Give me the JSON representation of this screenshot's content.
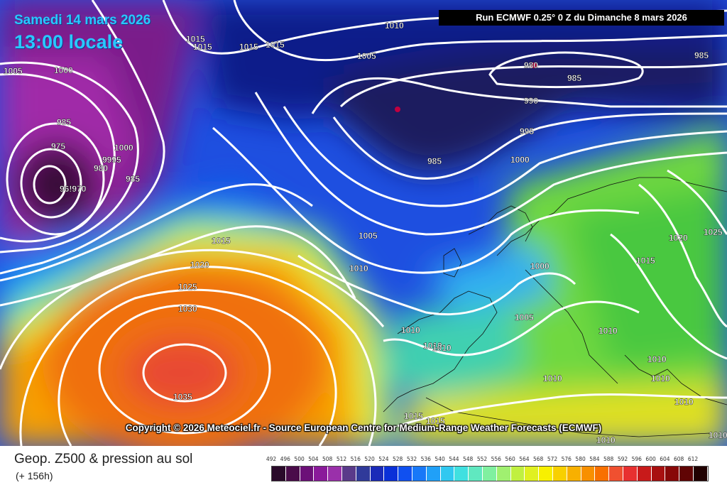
{
  "header": {
    "date": "Samedi 14 mars 2026",
    "time": "13:00 locale",
    "run": "Run ECMWF 0.25° 0 Z du Dimanche 8 mars 2026"
  },
  "copyright": "Copyright © 2026 Meteociel.fr - Source European Centre for Medium-Range Weather Forecasts (ECMWF)",
  "footer": {
    "caption": "Geop. Z500 & pression au sol",
    "hours": "(+ 156h)"
  },
  "scale": {
    "labels": [
      "492",
      "496",
      "500",
      "504",
      "508",
      "512",
      "516",
      "520",
      "524",
      "528",
      "532",
      "536",
      "540",
      "544",
      "548",
      "552",
      "556",
      "560",
      "564",
      "568",
      "572",
      "576",
      "580",
      "584",
      "588",
      "592",
      "596",
      "600",
      "604",
      "608",
      "612"
    ],
    "colors": [
      "#2a0a2a",
      "#4a0c4a",
      "#6c1078",
      "#8a1a9a",
      "#9a30aa",
      "#5a3a8a",
      "#303a9a",
      "#1a2ab8",
      "#0a30d8",
      "#1050f0",
      "#1878f8",
      "#20a0f8",
      "#30c8f0",
      "#40e0e0",
      "#60e8c0",
      "#80f0a0",
      "#a0f070",
      "#c0f040",
      "#e0f020",
      "#f8f000",
      "#f8d000",
      "#f8b000",
      "#f89000",
      "#f87000",
      "#f05030",
      "#e83030",
      "#c81a1a",
      "#a81010",
      "#880808",
      "#600404",
      "#200000"
    ]
  },
  "isobars": [
    {
      "text": "1015"
    },
    {
      "text": "1010"
    },
    {
      "text": "1015"
    },
    {
      "text": "1015"
    },
    {
      "text": "1015"
    },
    {
      "text": "1005"
    },
    {
      "text": "1000"
    },
    {
      "text": "1005"
    },
    {
      "text": "985"
    },
    {
      "text": "980"
    },
    {
      "text": "985"
    },
    {
      "text": "990"
    },
    {
      "text": "995"
    },
    {
      "text": "985"
    },
    {
      "text": "1000"
    },
    {
      "text": "985"
    },
    {
      "text": "975"
    },
    {
      "text": "1000"
    },
    {
      "text": "9995"
    },
    {
      "text": "980"
    },
    {
      "text": "985"
    },
    {
      "text": "96!970"
    },
    {
      "text": "1015"
    },
    {
      "text": "1020"
    },
    {
      "text": "1025"
    },
    {
      "text": "1030"
    },
    {
      "text": "1035"
    },
    {
      "text": "1005"
    },
    {
      "text": "1010"
    },
    {
      "text": "1000"
    },
    {
      "text": "1005"
    },
    {
      "text": "1010"
    },
    {
      "text": "1010"
    },
    {
      "text": "1010"
    },
    {
      "text": "1010"
    },
    {
      "text": "1020"
    },
    {
      "text": "1025"
    },
    {
      "text": "1015"
    },
    {
      "text": "1010"
    },
    {
      "text": "1010"
    },
    {
      "text": "1010"
    },
    {
      "text": "1010"
    },
    {
      "text": "1015"
    },
    {
      "text": "1015"
    },
    {
      "text": "1010"
    },
    {
      "text": "1010"
    }
  ]
}
